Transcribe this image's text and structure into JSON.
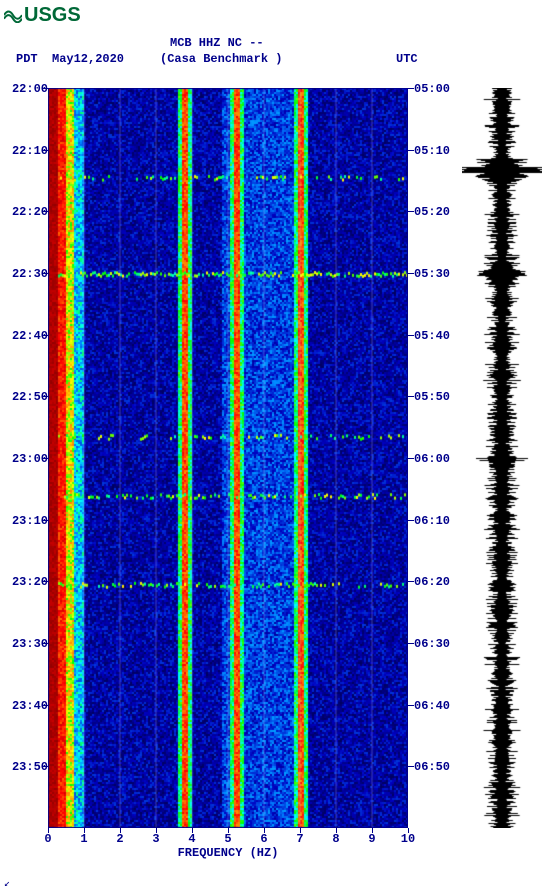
{
  "logo_text": "USGS",
  "header": {
    "station_id": "MCB HHZ NC --",
    "left_tz": "PDT",
    "date": "May12,2020",
    "station_name": "(Casa Benchmark )",
    "right_tz": "UTC"
  },
  "spectrogram": {
    "type": "spectrogram",
    "xlim": [
      0,
      10
    ],
    "xtick_step": 1,
    "xlabel": "FREQUENCY (HZ)",
    "left_ticks": [
      "22:00",
      "22:10",
      "22:20",
      "22:30",
      "22:40",
      "22:50",
      "23:00",
      "23:10",
      "23:20",
      "23:30",
      "23:40",
      "23:50"
    ],
    "right_ticks": [
      "05:00",
      "05:10",
      "05:20",
      "05:30",
      "05:40",
      "05:50",
      "06:00",
      "06:10",
      "06:20",
      "06:30",
      "06:40",
      "06:50"
    ],
    "tick_count": 12,
    "background_color": "#0000a0",
    "gridline_color": "#c0c0ff",
    "text_color": "#00008b",
    "colormap": [
      "#800000",
      "#ff0000",
      "#ff8000",
      "#ffff00",
      "#00ff00",
      "#00ffff",
      "#0080ff",
      "#0000c0",
      "#000060"
    ],
    "persistent_lines_hz": [
      0.4,
      3.8,
      5.2,
      7.0
    ],
    "horizontal_bursts": [
      {
        "frac": 0.25,
        "intensity": 0.9
      },
      {
        "frac": 0.12,
        "intensity": 0.4
      },
      {
        "frac": 0.47,
        "intensity": 0.5
      },
      {
        "frac": 0.55,
        "intensity": 0.6
      },
      {
        "frac": 0.67,
        "intensity": 0.5
      }
    ]
  },
  "waveform": {
    "color": "#000000",
    "base_amp": 0.25,
    "spikes": [
      {
        "frac": 0.11,
        "amp": 1.0
      },
      {
        "frac": 0.25,
        "amp": 0.7
      },
      {
        "frac": 0.5,
        "amp": 0.5
      }
    ]
  },
  "footer_mark": "↙"
}
